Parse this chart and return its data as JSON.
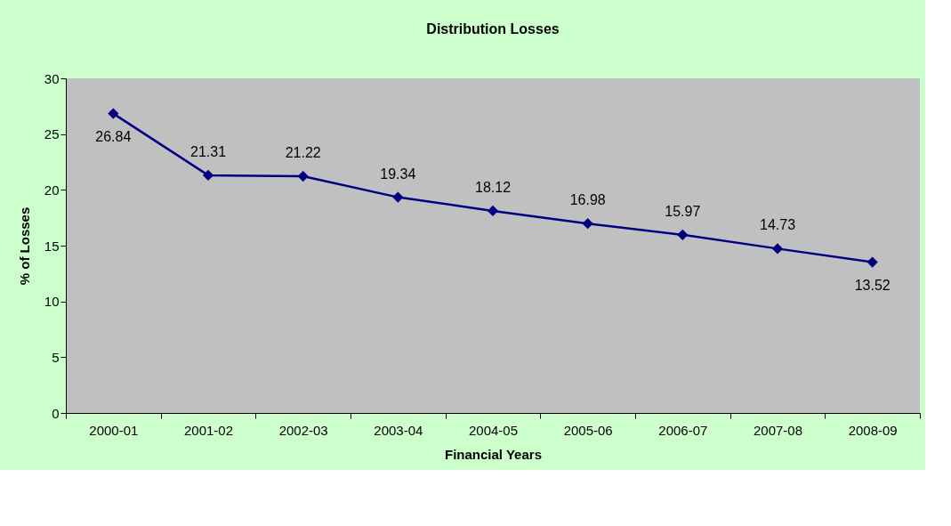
{
  "chart_data": {
    "type": "line",
    "title": "Distribution Losses",
    "xlabel": "Financial Years",
    "ylabel": "% of Losses",
    "categories": [
      "2000-01",
      "2001-02",
      "2002-03",
      "2003-04",
      "2004-05",
      "2005-06",
      "2006-07",
      "2007-08",
      "2008-09"
    ],
    "series": [
      {
        "color": "#000080",
        "values": [
          26.84,
          21.31,
          21.22,
          19.34,
          18.12,
          16.98,
          15.97,
          14.73,
          13.52
        ]
      }
    ],
    "ylim": [
      0,
      30
    ],
    "yticks": [
      0,
      5,
      10,
      15,
      20,
      25,
      30
    ],
    "grid": false,
    "legend": false,
    "marker": "diamond",
    "line_style": "solid",
    "data_labels": true
  }
}
